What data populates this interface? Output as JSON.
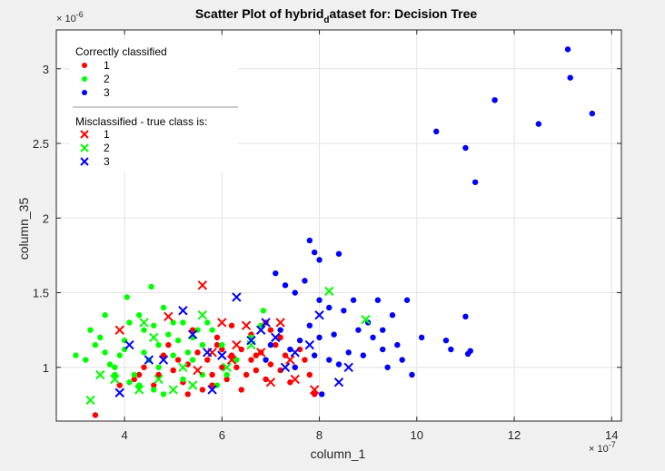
{
  "chart_data": {
    "type": "scatter",
    "title": "Scatter Plot of hybrid",
    "title_sub": "d",
    "title_tail": "ataset for: Decision Tree",
    "xlabel": "column_1",
    "ylabel": "column_35",
    "x_exponent_base": "× 10",
    "x_exponent": "-7",
    "y_exponent_base": "× 10",
    "y_exponent": "-6",
    "xlim": [
      2.6,
      14.2
    ],
    "ylim": [
      0.64,
      3.26
    ],
    "xticks": [
      4,
      6,
      8,
      10,
      12,
      14
    ],
    "yticks": [
      1,
      1.5,
      2,
      2.5,
      3
    ],
    "xtick_labels": [
      "4",
      "6",
      "8",
      "10",
      "12",
      "14"
    ],
    "ytick_labels": [
      "1",
      "1.5",
      "2",
      "2.5",
      "3"
    ],
    "grid": true,
    "legend_position": "top-left",
    "legend": {
      "correct_title": "Correctly classified",
      "mis_title": "Misclassified - true class is:",
      "labels": [
        "1",
        "2",
        "3"
      ]
    },
    "colors": {
      "1": "#ff0000",
      "2": "#00ff00",
      "3": "#0000ff"
    },
    "series": [
      {
        "name": "1",
        "marker": "dot",
        "points": [
          [
            3.4,
            0.68
          ],
          [
            3.9,
            0.88
          ],
          [
            4.3,
            0.95
          ],
          [
            4.6,
            0.88
          ],
          [
            4.8,
            1.08
          ],
          [
            5.0,
            0.98
          ],
          [
            5.2,
            0.9
          ],
          [
            5.3,
            1.02
          ],
          [
            5.5,
            1.1
          ],
          [
            5.6,
            0.85
          ],
          [
            5.7,
            1.05
          ],
          [
            5.8,
            0.95
          ],
          [
            5.9,
            1.15
          ],
          [
            6.0,
            1.0
          ],
          [
            6.1,
            0.92
          ],
          [
            6.2,
            1.08
          ],
          [
            6.3,
            1.0
          ],
          [
            6.4,
            1.12
          ],
          [
            6.5,
            0.95
          ],
          [
            6.6,
            1.05
          ],
          [
            6.7,
            0.98
          ],
          [
            6.8,
            1.1
          ],
          [
            6.9,
            0.92
          ],
          [
            7.0,
            1.02
          ],
          [
            7.1,
            1.15
          ],
          [
            7.2,
            0.98
          ],
          [
            7.3,
            1.08
          ],
          [
            7.4,
            0.9
          ],
          [
            7.5,
            1.0
          ],
          [
            7.6,
            1.12
          ],
          [
            7.7,
            1.05
          ],
          [
            7.9,
            0.82
          ],
          [
            5.4,
            1.25
          ],
          [
            5.9,
            1.2
          ],
          [
            6.2,
            1.28
          ],
          [
            6.6,
            1.22
          ],
          [
            7.0,
            1.25
          ],
          [
            7.2,
            1.2
          ],
          [
            4.4,
            1.0
          ],
          [
            4.7,
            0.95
          ],
          [
            5.1,
            1.05
          ],
          [
            5.8,
            0.88
          ],
          [
            6.4,
            0.85
          ],
          [
            6.9,
            1.3
          ],
          [
            4.9,
            1.15
          ],
          [
            5.3,
            0.82
          ],
          [
            6.0,
            1.12
          ],
          [
            4.2,
            0.92
          ],
          [
            6.7,
            1.08
          ],
          [
            7.8,
            0.95
          ]
        ]
      },
      {
        "name": "2",
        "marker": "dot",
        "points": [
          [
            3.0,
            1.08
          ],
          [
            3.2,
            1.05
          ],
          [
            3.4,
            1.15
          ],
          [
            3.5,
            1.2
          ],
          [
            3.6,
            1.1
          ],
          [
            3.7,
            1.02
          ],
          [
            3.8,
            0.95
          ],
          [
            3.9,
            1.08
          ],
          [
            4.0,
            1.12
          ],
          [
            4.1,
            1.3
          ],
          [
            4.05,
            1.47
          ],
          [
            4.3,
            1.35
          ],
          [
            4.4,
            1.25
          ],
          [
            4.5,
            1.05
          ],
          [
            4.6,
            1.28
          ],
          [
            4.55,
            1.54
          ],
          [
            4.7,
            1.15
          ],
          [
            4.8,
            1.4
          ],
          [
            4.9,
            1.22
          ],
          [
            5.0,
            1.08
          ],
          [
            5.1,
            1.18
          ],
          [
            5.2,
            1.3
          ],
          [
            5.3,
            1.1
          ],
          [
            5.4,
            1.2
          ],
          [
            5.5,
            1.25
          ],
          [
            5.6,
            1.15
          ],
          [
            5.7,
            1.3
          ],
          [
            4.2,
            0.95
          ],
          [
            4.3,
            0.88
          ],
          [
            4.6,
            0.85
          ],
          [
            4.8,
            0.82
          ],
          [
            5.2,
            0.92
          ],
          [
            5.6,
            0.95
          ],
          [
            5.9,
            0.88
          ],
          [
            6.1,
            0.95
          ],
          [
            6.3,
            1.05
          ],
          [
            6.6,
            1.2
          ],
          [
            6.8,
            1.28
          ],
          [
            6.85,
            1.38
          ],
          [
            3.6,
            1.35
          ],
          [
            3.3,
            1.25
          ],
          [
            4.0,
            1.18
          ],
          [
            4.4,
            1.1
          ],
          [
            5.0,
            1.3
          ],
          [
            5.8,
            1.25
          ],
          [
            6.0,
            1.15
          ],
          [
            4.7,
            1.0
          ],
          [
            5.4,
            1.05
          ],
          [
            3.8,
            1.0
          ],
          [
            4.1,
            0.9
          ]
        ]
      },
      {
        "name": "3",
        "marker": "dot",
        "points": [
          [
            13.1,
            3.13
          ],
          [
            13.15,
            2.94
          ],
          [
            13.6,
            2.7
          ],
          [
            11.6,
            2.79
          ],
          [
            12.5,
            2.63
          ],
          [
            10.4,
            2.58
          ],
          [
            11.0,
            2.47
          ],
          [
            11.2,
            2.24
          ],
          [
            7.8,
            1.85
          ],
          [
            7.9,
            1.77
          ],
          [
            8.0,
            1.72
          ],
          [
            8.4,
            1.76
          ],
          [
            7.1,
            1.63
          ],
          [
            7.3,
            1.55
          ],
          [
            7.7,
            1.58
          ],
          [
            7.5,
            1.5
          ],
          [
            8.0,
            1.45
          ],
          [
            8.2,
            1.4
          ],
          [
            8.5,
            1.38
          ],
          [
            8.7,
            1.45
          ],
          [
            9.2,
            1.45
          ],
          [
            9.8,
            1.45
          ],
          [
            9.5,
            1.35
          ],
          [
            9.0,
            1.3
          ],
          [
            8.8,
            1.25
          ],
          [
            8.3,
            1.22
          ],
          [
            8.0,
            1.2
          ],
          [
            7.8,
            1.28
          ],
          [
            7.6,
            1.18
          ],
          [
            7.4,
            1.12
          ],
          [
            7.2,
            1.25
          ],
          [
            7.0,
            1.15
          ],
          [
            8.6,
            1.1
          ],
          [
            8.9,
            1.08
          ],
          [
            9.3,
            1.12
          ],
          [
            9.6,
            1.15
          ],
          [
            10.1,
            1.2
          ],
          [
            10.6,
            1.18
          ],
          [
            10.7,
            1.12
          ],
          [
            11.0,
            1.34
          ],
          [
            11.05,
            1.09
          ],
          [
            11.1,
            1.11
          ],
          [
            9.9,
            0.95
          ],
          [
            9.7,
            1.05
          ],
          [
            9.4,
            1.0
          ],
          [
            8.4,
            1.02
          ],
          [
            8.2,
            1.05
          ],
          [
            7.9,
            1.08
          ],
          [
            8.05,
            0.82
          ],
          [
            6.9,
            1.05
          ],
          [
            7.5,
            1.0
          ],
          [
            9.1,
            1.2
          ],
          [
            9.3,
            1.25
          ]
        ]
      },
      {
        "name": "1",
        "marker": "x",
        "points": [
          [
            3.9,
            1.25
          ],
          [
            4.9,
            1.34
          ],
          [
            5.6,
            1.55
          ],
          [
            6.0,
            1.3
          ],
          [
            6.5,
            1.28
          ],
          [
            7.2,
            1.3
          ],
          [
            6.2,
            1.05
          ],
          [
            7.0,
            0.9
          ],
          [
            7.5,
            0.92
          ],
          [
            5.5,
            0.98
          ],
          [
            6.8,
            1.1
          ],
          [
            7.4,
            1.05
          ],
          [
            5.8,
            1.1
          ],
          [
            6.3,
            1.15
          ],
          [
            7.9,
            0.85
          ]
        ]
      },
      {
        "name": "2",
        "marker": "x",
        "points": [
          [
            3.3,
            0.78
          ],
          [
            3.5,
            0.95
          ],
          [
            3.8,
            0.92
          ],
          [
            4.3,
            0.85
          ],
          [
            4.7,
            0.92
          ],
          [
            5.0,
            0.85
          ],
          [
            5.4,
            0.88
          ],
          [
            5.6,
            1.35
          ],
          [
            6.1,
            1.0
          ],
          [
            4.4,
            1.3
          ],
          [
            4.6,
            1.2
          ],
          [
            5.2,
            1.0
          ],
          [
            8.2,
            1.51
          ],
          [
            8.95,
            1.32
          ],
          [
            6.6,
            1.15
          ]
        ]
      },
      {
        "name": "3",
        "marker": "x",
        "points": [
          [
            3.9,
            0.83
          ],
          [
            4.1,
            1.15
          ],
          [
            4.5,
            1.05
          ],
          [
            4.8,
            1.05
          ],
          [
            5.2,
            1.38
          ],
          [
            5.4,
            1.22
          ],
          [
            5.7,
            1.1
          ],
          [
            6.0,
            1.08
          ],
          [
            6.3,
            1.47
          ],
          [
            6.6,
            1.18
          ],
          [
            6.8,
            1.25
          ],
          [
            7.1,
            1.2
          ],
          [
            7.5,
            1.1
          ],
          [
            7.8,
            1.15
          ],
          [
            8.0,
            1.35
          ],
          [
            8.4,
            0.9
          ],
          [
            8.6,
            1.0
          ],
          [
            5.8,
            0.85
          ],
          [
            7.3,
            1.0
          ],
          [
            6.9,
            1.3
          ]
        ]
      }
    ]
  }
}
